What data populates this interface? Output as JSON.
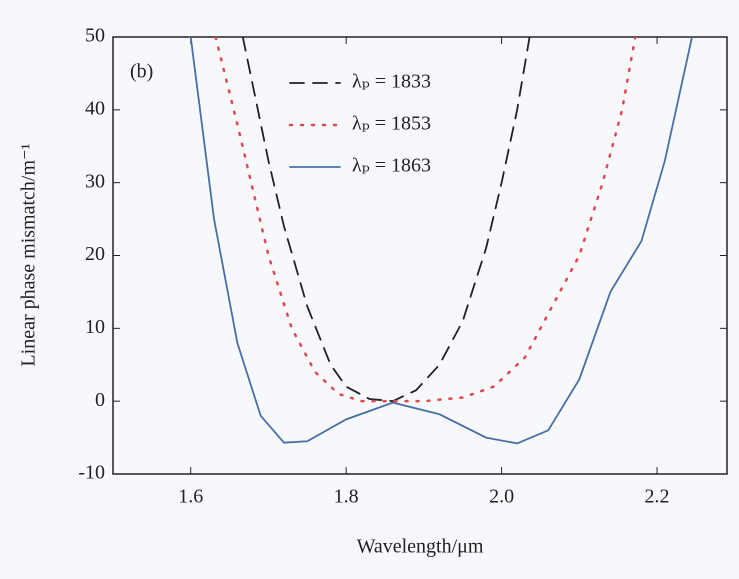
{
  "chart_data": {
    "type": "line",
    "x_label": "Wavelength/μm",
    "y_label": "Linear phase mismatch/m⁻¹",
    "annotation": "(b)",
    "xlim": [
      1.5,
      2.29
    ],
    "ylim": [
      -10,
      50
    ],
    "xticks": [
      1.6,
      1.8,
      {
        "value": 2.0,
        "label": "2.0"
      },
      2.2
    ],
    "yticks": [
      -10,
      0,
      10,
      20,
      30,
      40,
      50
    ],
    "legend": "top-center",
    "series": [
      {
        "name": "λₚ = 1833",
        "color": "#222222",
        "style": "dashed",
        "x": [
          1.667,
          1.7,
          1.72,
          1.75,
          1.78,
          1.8,
          1.83,
          1.86,
          1.89,
          1.92,
          1.95,
          1.98,
          2.0,
          2.02,
          2.036
        ],
        "values": [
          50,
          33,
          24,
          13,
          5,
          2,
          0.3,
          0,
          1.5,
          5,
          11,
          21,
          30,
          40,
          50
        ]
      },
      {
        "name": "λₚ = 1853",
        "color": "#e0484f",
        "style": "dotted",
        "x": [
          1.632,
          1.66,
          1.7,
          1.73,
          1.76,
          1.79,
          1.82,
          1.86,
          1.9,
          1.95,
          1.99,
          2.03,
          2.06,
          2.1,
          2.13,
          2.155,
          2.172
        ],
        "values": [
          50,
          38,
          20,
          10,
          4,
          1,
          0,
          0,
          0,
          0.5,
          2,
          6,
          12,
          20,
          30,
          40,
          50
        ]
      },
      {
        "name": "λₚ = 1863",
        "color": "#4a6fa5",
        "style": "solid",
        "x": [
          1.6,
          1.63,
          1.66,
          1.69,
          1.72,
          1.75,
          1.8,
          1.86,
          1.92,
          1.98,
          2.02,
          2.06,
          2.1,
          2.14,
          2.18,
          2.21,
          2.245
        ],
        "values": [
          50,
          25,
          8,
          -2,
          -5.7,
          -5.5,
          -2.5,
          -0.2,
          -1.8,
          -5,
          -5.8,
          -4,
          3,
          15,
          22,
          33,
          50
        ]
      }
    ]
  }
}
